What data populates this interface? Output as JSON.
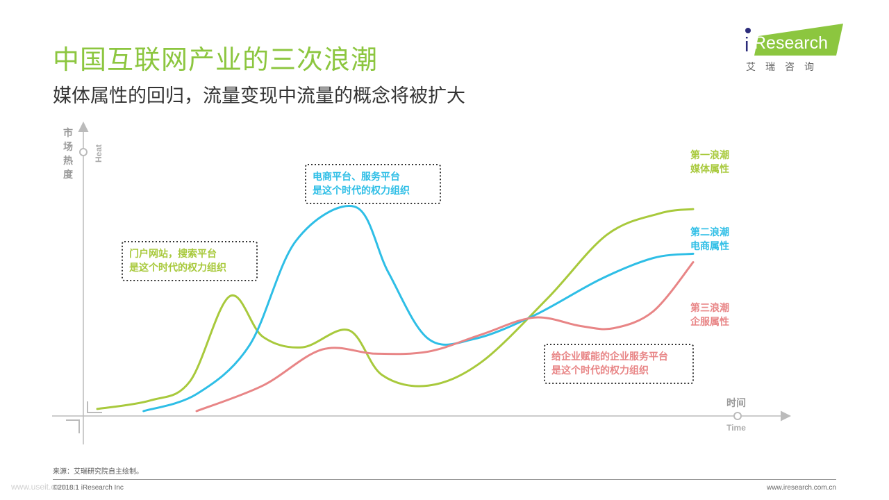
{
  "header": {
    "title": "中国互联网产业的三次浪潮",
    "subtitle": "媒体属性的回归，流量变现中流量的概念将被扩大"
  },
  "logo": {
    "brand_i": "i",
    "brand_rest": "Research",
    "tagline": "艾瑞咨询",
    "accent_color": "#8cc63f"
  },
  "footer": {
    "source": "来源：艾瑞研究院自主绘制。",
    "copyright": "©2018.1 iResearch Inc",
    "url": "www.iresearch.com.cn",
    "watermark": "www.useit.com.cn"
  },
  "chart_data": {
    "type": "line",
    "ylabel": "市场热度",
    "ylabel_en": "Heat",
    "xlabel": "时间",
    "xlabel_en": "Time",
    "series": [
      {
        "name": "第一浪潮\n媒体属性",
        "label_line1": "第一浪潮",
        "label_line2": "媒体属性",
        "color": "#a8c93c",
        "points": [
          [
            0,
            1
          ],
          [
            8,
            5
          ],
          [
            14,
            14
          ],
          [
            20,
            54
          ],
          [
            25,
            35
          ],
          [
            31,
            30
          ],
          [
            38,
            38
          ],
          [
            43,
            17
          ],
          [
            50,
            12
          ],
          [
            58,
            23
          ],
          [
            68,
            53
          ],
          [
            77,
            83
          ],
          [
            85,
            93
          ],
          [
            90,
            95
          ]
        ]
      },
      {
        "name": "第二浪潮\n电商属性",
        "label_line1": "第二浪潮",
        "label_line2": "电商属性",
        "color": "#2ebee6",
        "points": [
          [
            7,
            0
          ],
          [
            15,
            8
          ],
          [
            23,
            31
          ],
          [
            30,
            80
          ],
          [
            39,
            96
          ],
          [
            44,
            65
          ],
          [
            50,
            34
          ],
          [
            57,
            34
          ],
          [
            66,
            45
          ],
          [
            76,
            62
          ],
          [
            84,
            72
          ],
          [
            90,
            74
          ]
        ]
      },
      {
        "name": "第三浪潮\n企服属性",
        "label_line1": "第三浪潮",
        "label_line2": "企服属性",
        "color": "#e88586",
        "points": [
          [
            15,
            0
          ],
          [
            25,
            12
          ],
          [
            34,
            29
          ],
          [
            42,
            27
          ],
          [
            50,
            28
          ],
          [
            58,
            36
          ],
          [
            66,
            44
          ],
          [
            73,
            40
          ],
          [
            78,
            39
          ],
          [
            84,
            47
          ],
          [
            90,
            70
          ]
        ]
      }
    ],
    "annotations": [
      {
        "line1": "门户网站，搜索平台",
        "line2": "是这个时代的权力组织",
        "color": "#a8c93c"
      },
      {
        "line1": "电商平台、服务平台",
        "line2": "是这个时代的权力组织",
        "color": "#2ebee6"
      },
      {
        "line1": "给企业赋能的企业服务平台",
        "line2": "是这个时代的权力组织",
        "color": "#e88586"
      }
    ],
    "grid": false,
    "legend": "right end of each line"
  }
}
